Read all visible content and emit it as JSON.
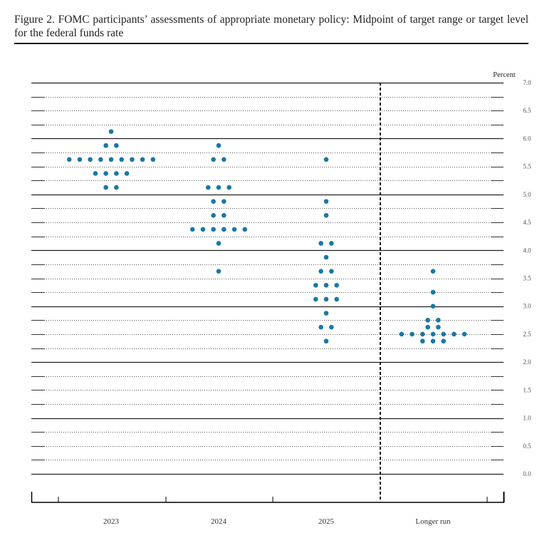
{
  "figure": {
    "title": "Figure 2.  FOMC participants’ assessments of appropriate monetary policy:  Midpoint of target range or target level for the federal funds rate"
  },
  "chart_data": {
    "type": "scatter",
    "subtype": "dot-plot",
    "title": "Figure 2. FOMC participants’ assessments of appropriate monetary policy: Midpoint of target range or target level for the federal funds rate",
    "xlabel": "",
    "ylabel": "Percent",
    "ylim": [
      0.0,
      7.0
    ],
    "y_ticks": [
      "0.0",
      "0.5",
      "1.0",
      "1.5",
      "2.0",
      "2.5",
      "3.0",
      "3.5",
      "4.0",
      "4.5",
      "5.0",
      "5.5",
      "6.0",
      "6.5",
      "7.0"
    ],
    "grid": true,
    "grid_minor_step": 0.25,
    "categories": [
      "2023",
      "2024",
      "2025",
      "Longer run"
    ],
    "dot_color": "#1A77A3",
    "separator_before": "Longer run",
    "series": [
      {
        "name": "2023",
        "points": [
          {
            "value": 6.125,
            "count": 1
          },
          {
            "value": 5.875,
            "count": 2
          },
          {
            "value": 5.625,
            "count": 9
          },
          {
            "value": 5.375,
            "count": 4
          },
          {
            "value": 5.125,
            "count": 2
          }
        ]
      },
      {
        "name": "2024",
        "points": [
          {
            "value": 5.875,
            "count": 1
          },
          {
            "value": 5.625,
            "count": 2
          },
          {
            "value": 5.125,
            "count": 3
          },
          {
            "value": 4.875,
            "count": 2
          },
          {
            "value": 4.625,
            "count": 2
          },
          {
            "value": 4.375,
            "count": 6
          },
          {
            "value": 4.125,
            "count": 1
          },
          {
            "value": 3.625,
            "count": 1
          }
        ]
      },
      {
        "name": "2025",
        "points": [
          {
            "value": 5.625,
            "count": 1
          },
          {
            "value": 4.875,
            "count": 1
          },
          {
            "value": 4.625,
            "count": 1
          },
          {
            "value": 4.125,
            "count": 2
          },
          {
            "value": 3.875,
            "count": 1
          },
          {
            "value": 3.625,
            "count": 2
          },
          {
            "value": 3.375,
            "count": 3
          },
          {
            "value": 3.125,
            "count": 3
          },
          {
            "value": 2.875,
            "count": 1
          },
          {
            "value": 2.625,
            "count": 2
          },
          {
            "value": 2.375,
            "count": 1
          }
        ]
      },
      {
        "name": "Longer run",
        "points": [
          {
            "value": 3.625,
            "count": 1
          },
          {
            "value": 3.25,
            "count": 1
          },
          {
            "value": 3.0,
            "count": 1
          },
          {
            "value": 2.75,
            "count": 2
          },
          {
            "value": 2.625,
            "count": 2
          },
          {
            "value": 2.5,
            "count": 7
          },
          {
            "value": 2.375,
            "count": 3
          }
        ]
      }
    ]
  }
}
